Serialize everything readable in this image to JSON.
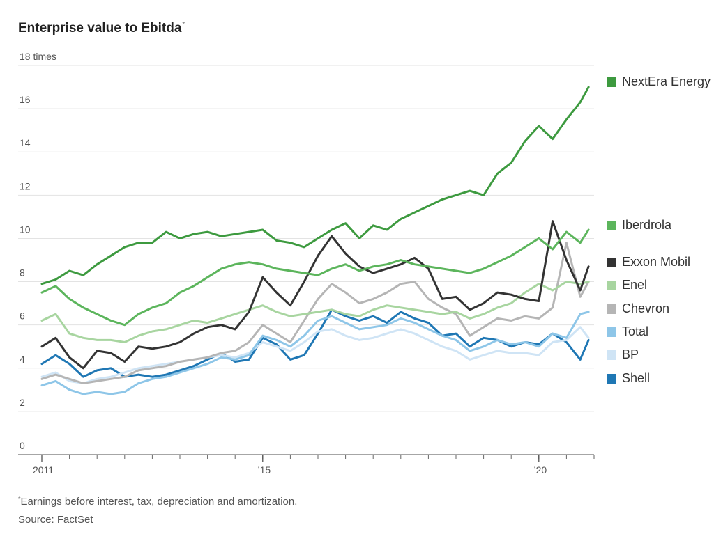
{
  "title": "Enterprise value to Ebitda",
  "title_marker": "*",
  "footnote_marker": "*",
  "footnote": "Earnings before interest, tax, depreciation and amortization.",
  "source": "Source: FactSet",
  "chart_data": {
    "type": "line",
    "ylim": [
      0,
      18
    ],
    "ytick_labels": [
      "0",
      "2",
      "4",
      "6",
      "8",
      "10",
      "12",
      "14",
      "16",
      "18 times"
    ],
    "ytick_values": [
      0,
      2,
      4,
      6,
      8,
      10,
      12,
      14,
      16,
      18
    ],
    "xlim": [
      2011.0,
      2021.0
    ],
    "xtick_labels": [
      {
        "value": 2011.0,
        "label": "2011"
      },
      {
        "value": 2015.0,
        "label": "’15"
      },
      {
        "value": 2020.0,
        "label": "’20"
      }
    ],
    "grid": true,
    "legend": "right",
    "series": [
      {
        "name": "NextEra Energy",
        "color": "#3d9a3f",
        "x": [
          2011.0,
          2011.25,
          2011.5,
          2011.75,
          2012.0,
          2012.25,
          2012.5,
          2012.75,
          2013.0,
          2013.25,
          2013.5,
          2013.75,
          2014.0,
          2014.25,
          2014.5,
          2014.75,
          2015.0,
          2015.25,
          2015.5,
          2015.75,
          2016.0,
          2016.25,
          2016.5,
          2016.75,
          2017.0,
          2017.25,
          2017.5,
          2017.75,
          2018.0,
          2018.25,
          2018.5,
          2018.75,
          2019.0,
          2019.25,
          2019.5,
          2019.75,
          2020.0,
          2020.25,
          2020.5,
          2020.75,
          2020.9
        ],
        "values": [
          7.9,
          8.1,
          8.5,
          8.3,
          8.8,
          9.2,
          9.6,
          9.8,
          9.8,
          10.3,
          10.0,
          10.2,
          10.3,
          10.1,
          10.2,
          10.3,
          10.4,
          9.9,
          9.8,
          9.6,
          10.0,
          10.4,
          10.7,
          10.0,
          10.6,
          10.4,
          10.9,
          11.2,
          11.5,
          11.8,
          12.0,
          12.2,
          12.0,
          13.0,
          13.5,
          14.5,
          15.2,
          14.6,
          15.5,
          16.3,
          17.0
        ]
      },
      {
        "name": "Iberdrola",
        "color": "#5cb55c",
        "x": [
          2011.0,
          2011.25,
          2011.5,
          2011.75,
          2012.0,
          2012.25,
          2012.5,
          2012.75,
          2013.0,
          2013.25,
          2013.5,
          2013.75,
          2014.0,
          2014.25,
          2014.5,
          2014.75,
          2015.0,
          2015.25,
          2015.5,
          2015.75,
          2016.0,
          2016.25,
          2016.5,
          2016.75,
          2017.0,
          2017.25,
          2017.5,
          2017.75,
          2018.0,
          2018.25,
          2018.5,
          2018.75,
          2019.0,
          2019.25,
          2019.5,
          2019.75,
          2020.0,
          2020.25,
          2020.5,
          2020.75,
          2020.9
        ],
        "values": [
          7.5,
          7.8,
          7.2,
          6.8,
          6.5,
          6.2,
          6.0,
          6.5,
          6.8,
          7.0,
          7.5,
          7.8,
          8.2,
          8.6,
          8.8,
          8.9,
          8.8,
          8.6,
          8.5,
          8.4,
          8.3,
          8.6,
          8.8,
          8.5,
          8.7,
          8.8,
          9.0,
          8.8,
          8.7,
          8.6,
          8.5,
          8.4,
          8.6,
          8.9,
          9.2,
          9.6,
          10.0,
          9.5,
          10.3,
          9.8,
          10.4
        ]
      },
      {
        "name": "Exxon Mobil",
        "color": "#333333",
        "x": [
          2011.0,
          2011.25,
          2011.5,
          2011.75,
          2012.0,
          2012.25,
          2012.5,
          2012.75,
          2013.0,
          2013.25,
          2013.5,
          2013.75,
          2014.0,
          2014.25,
          2014.5,
          2014.75,
          2015.0,
          2015.25,
          2015.5,
          2015.75,
          2016.0,
          2016.25,
          2016.5,
          2016.75,
          2017.0,
          2017.25,
          2017.5,
          2017.75,
          2018.0,
          2018.25,
          2018.5,
          2018.75,
          2019.0,
          2019.25,
          2019.5,
          2019.75,
          2020.0,
          2020.25,
          2020.5,
          2020.75,
          2020.9
        ],
        "values": [
          5.0,
          5.4,
          4.5,
          4.0,
          4.8,
          4.7,
          4.3,
          5.0,
          4.9,
          5.0,
          5.2,
          5.6,
          5.9,
          6.0,
          5.8,
          6.6,
          8.2,
          7.5,
          6.9,
          8.0,
          9.2,
          10.1,
          9.3,
          8.7,
          8.4,
          8.6,
          8.8,
          9.1,
          8.6,
          7.2,
          7.3,
          6.7,
          7.0,
          7.5,
          7.4,
          7.2,
          7.1,
          10.8,
          9.0,
          7.6,
          8.7
        ]
      },
      {
        "name": "Enel",
        "color": "#a8d5a0",
        "x": [
          2011.0,
          2011.25,
          2011.5,
          2011.75,
          2012.0,
          2012.25,
          2012.5,
          2012.75,
          2013.0,
          2013.25,
          2013.5,
          2013.75,
          2014.0,
          2014.25,
          2014.5,
          2014.75,
          2015.0,
          2015.25,
          2015.5,
          2015.75,
          2016.0,
          2016.25,
          2016.5,
          2016.75,
          2017.0,
          2017.25,
          2017.5,
          2017.75,
          2018.0,
          2018.25,
          2018.5,
          2018.75,
          2019.0,
          2019.25,
          2019.5,
          2019.75,
          2020.0,
          2020.25,
          2020.5,
          2020.75,
          2020.9
        ],
        "values": [
          6.2,
          6.5,
          5.6,
          5.4,
          5.3,
          5.3,
          5.2,
          5.5,
          5.7,
          5.8,
          6.0,
          6.2,
          6.1,
          6.3,
          6.5,
          6.7,
          6.9,
          6.6,
          6.4,
          6.5,
          6.6,
          6.7,
          6.5,
          6.4,
          6.7,
          6.9,
          6.8,
          6.7,
          6.6,
          6.5,
          6.6,
          6.3,
          6.5,
          6.8,
          7.0,
          7.5,
          7.9,
          7.6,
          8.0,
          7.9,
          8.0
        ]
      },
      {
        "name": "Chevron",
        "color": "#b5b5b5",
        "x": [
          2011.0,
          2011.25,
          2011.5,
          2011.75,
          2012.0,
          2012.25,
          2012.5,
          2012.75,
          2013.0,
          2013.25,
          2013.5,
          2013.75,
          2014.0,
          2014.25,
          2014.5,
          2014.75,
          2015.0,
          2015.25,
          2015.5,
          2015.75,
          2016.0,
          2016.25,
          2016.5,
          2016.75,
          2017.0,
          2017.25,
          2017.5,
          2017.75,
          2018.0,
          2018.25,
          2018.5,
          2018.75,
          2019.0,
          2019.25,
          2019.5,
          2019.75,
          2020.0,
          2020.25,
          2020.5,
          2020.75,
          2020.9
        ],
        "values": [
          3.5,
          3.7,
          3.5,
          3.3,
          3.4,
          3.5,
          3.6,
          3.9,
          4.0,
          4.1,
          4.3,
          4.4,
          4.5,
          4.7,
          4.8,
          5.2,
          6.0,
          5.6,
          5.2,
          6.2,
          7.2,
          7.9,
          7.5,
          7.0,
          7.2,
          7.5,
          7.9,
          8.0,
          7.2,
          6.8,
          6.5,
          5.5,
          5.9,
          6.3,
          6.2,
          6.4,
          6.3,
          6.8,
          9.8,
          7.3,
          8.0
        ]
      },
      {
        "name": "Total",
        "color": "#8ec6e8",
        "x": [
          2011.0,
          2011.25,
          2011.5,
          2011.75,
          2012.0,
          2012.25,
          2012.5,
          2012.75,
          2013.0,
          2013.25,
          2013.5,
          2013.75,
          2014.0,
          2014.25,
          2014.5,
          2014.75,
          2015.0,
          2015.25,
          2015.5,
          2015.75,
          2016.0,
          2016.25,
          2016.5,
          2016.75,
          2017.0,
          2017.25,
          2017.5,
          2017.75,
          2018.0,
          2018.25,
          2018.5,
          2018.75,
          2019.0,
          2019.25,
          2019.5,
          2019.75,
          2020.0,
          2020.25,
          2020.5,
          2020.75,
          2020.9
        ],
        "values": [
          3.2,
          3.4,
          3.0,
          2.8,
          2.9,
          2.8,
          2.9,
          3.3,
          3.5,
          3.6,
          3.8,
          4.0,
          4.2,
          4.5,
          4.4,
          4.6,
          5.5,
          5.3,
          5.0,
          5.5,
          6.2,
          6.4,
          6.1,
          5.8,
          5.9,
          6.0,
          6.3,
          6.1,
          5.8,
          5.5,
          5.3,
          4.8,
          5.0,
          5.3,
          5.1,
          5.2,
          5.0,
          5.6,
          5.4,
          6.5,
          6.6
        ]
      },
      {
        "name": "BP",
        "color": "#cfe4f5",
        "x": [
          2011.0,
          2011.25,
          2011.5,
          2011.75,
          2012.0,
          2012.25,
          2012.5,
          2012.75,
          2013.0,
          2013.25,
          2013.5,
          2013.75,
          2014.0,
          2014.25,
          2014.5,
          2014.75,
          2015.0,
          2015.25,
          2015.5,
          2015.75,
          2016.0,
          2016.25,
          2016.5,
          2016.75,
          2017.0,
          2017.25,
          2017.5,
          2017.75,
          2018.0,
          2018.25,
          2018.5,
          2018.75,
          2019.0,
          2019.25,
          2019.5,
          2019.75,
          2020.0,
          2020.25,
          2020.5,
          2020.75,
          2020.9
        ],
        "values": [
          3.6,
          3.8,
          3.4,
          3.3,
          3.5,
          3.6,
          3.8,
          4.0,
          4.1,
          4.2,
          4.3,
          4.4,
          4.5,
          4.6,
          4.5,
          4.7,
          5.2,
          5.0,
          4.8,
          5.2,
          5.7,
          5.8,
          5.5,
          5.3,
          5.4,
          5.6,
          5.8,
          5.6,
          5.3,
          5.0,
          4.8,
          4.4,
          4.6,
          4.8,
          4.7,
          4.7,
          4.6,
          5.2,
          5.3,
          5.9,
          5.4
        ]
      },
      {
        "name": "Shell",
        "color": "#1f77b4",
        "x": [
          2011.0,
          2011.25,
          2011.5,
          2011.75,
          2012.0,
          2012.25,
          2012.5,
          2012.75,
          2013.0,
          2013.25,
          2013.5,
          2013.75,
          2014.0,
          2014.25,
          2014.5,
          2014.75,
          2015.0,
          2015.25,
          2015.5,
          2015.75,
          2016.0,
          2016.25,
          2016.5,
          2016.75,
          2017.0,
          2017.25,
          2017.5,
          2017.75,
          2018.0,
          2018.25,
          2018.5,
          2018.75,
          2019.0,
          2019.25,
          2019.5,
          2019.75,
          2020.0,
          2020.25,
          2020.5,
          2020.75,
          2020.9
        ],
        "values": [
          4.2,
          4.6,
          4.2,
          3.6,
          3.9,
          4.0,
          3.6,
          3.7,
          3.6,
          3.7,
          3.9,
          4.1,
          4.4,
          4.7,
          4.3,
          4.4,
          5.4,
          5.1,
          4.4,
          4.6,
          5.6,
          6.7,
          6.4,
          6.2,
          6.4,
          6.1,
          6.6,
          6.3,
          6.1,
          5.5,
          5.6,
          5.0,
          5.4,
          5.3,
          5.0,
          5.2,
          5.1,
          5.6,
          5.2,
          4.4,
          5.3
        ]
      }
    ]
  }
}
